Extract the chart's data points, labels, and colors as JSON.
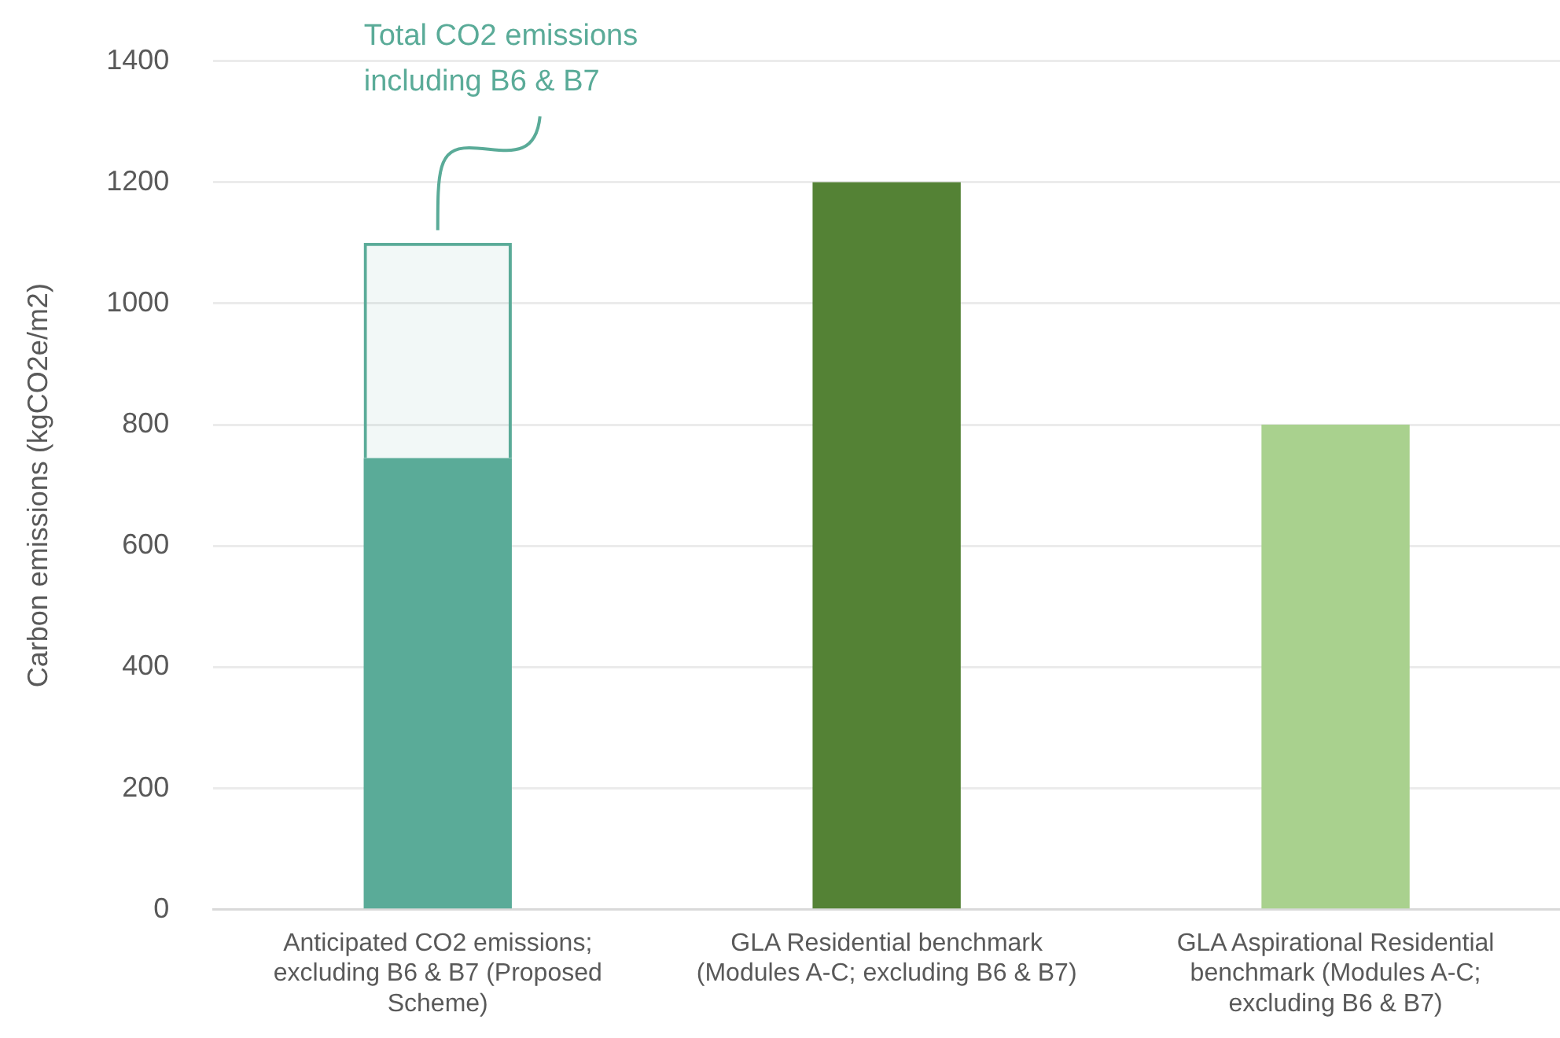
{
  "chart_data": {
    "type": "bar",
    "stacked": true,
    "categories": [
      "Anticipated CO2 emissions; excluding B6 & B7 (Proposed Scheme)",
      "GLA Residential benchmark (Modules A-C; excluding B6 & B7)",
      "GLA Aspirational Residential benchmark (Modules A-C; excluding B6 & B7)"
    ],
    "series": [
      {
        "colors": [
          "#5aab98",
          "#548235",
          "#a9d18e"
        ],
        "values": [
          745,
          1200,
          800
        ]
      },
      {
        "color": "#5aab98",
        "line_style": "dotted",
        "values": [
          355,
          null,
          null
        ]
      }
    ],
    "ylabel": "Carbon emissions (kgCO2e/m2)",
    "ylim": [
      0,
      1400
    ],
    "yticks": [
      0,
      200,
      400,
      600,
      800,
      1000,
      1200,
      1400
    ],
    "grid": "y",
    "legend": false,
    "annotations": [
      {
        "text": "Total CO2 emissions including B6 & B7",
        "x": "Anticipated CO2 emissions; excluding B6 & B7 (Proposed Scheme)",
        "y": 1100
      }
    ]
  }
}
